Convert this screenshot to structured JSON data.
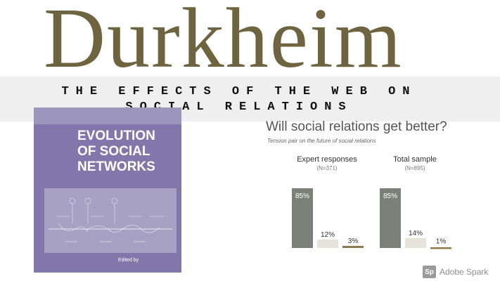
{
  "header": {
    "title": "Durkheim",
    "subtitle": "THE EFFECTS OF THE WEB ON SOCIAL RELATIONS"
  },
  "book": {
    "title_lines": [
      "EVOLUTION",
      "OF SOCIAL",
      "NETWORKS"
    ],
    "footer": "Edited by",
    "color": "#8177aa"
  },
  "chart_data": {
    "type": "bar",
    "title": "Will social relations get better?",
    "subtitle": "Tension pair on the future of social relations",
    "groups": [
      {
        "name": "Expert responses",
        "n_label": "(N=371)",
        "values": [
          85,
          12,
          3
        ],
        "labels": [
          "85%",
          "12%",
          "3%"
        ]
      },
      {
        "name": "Total sample",
        "n_label": "(N=895)",
        "values": [
          85,
          14,
          1
        ],
        "labels": [
          "85%",
          "14%",
          "1%"
        ]
      }
    ],
    "colors": [
      "#7b8079",
      "#e6e3da",
      "#8f7a4e"
    ],
    "ylim": [
      0,
      100
    ]
  },
  "branding": {
    "logo": "Sp",
    "text": "Adobe Spark"
  }
}
